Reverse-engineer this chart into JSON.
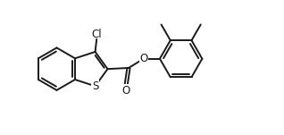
{
  "background_color": "#ffffff",
  "line_color": "#1a1a1a",
  "line_width": 1.4,
  "font_size": 8.5,
  "figsize": [
    3.18,
    1.51
  ],
  "dpi": 100,
  "xlim": [
    0,
    9.5
  ],
  "ylim": [
    0,
    4.5
  ],
  "S_label": "S",
  "O_label": "O",
  "Cl_label": "Cl"
}
